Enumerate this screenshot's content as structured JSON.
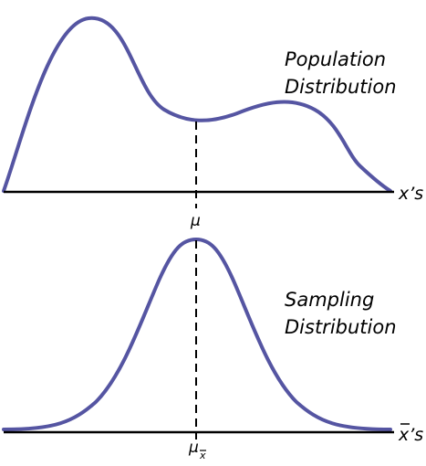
{
  "population": {
    "label_line1": "Population",
    "label_line2": "Distribution",
    "x_label": "x’s",
    "mean_label": "μ"
  },
  "sampling": {
    "label_line1": "Sampling",
    "label_line2": "Distribution",
    "x_label": "x’s",
    "mean_label": "μ",
    "mean_subscript": "x"
  },
  "colors": {
    "curve": "#5555a2",
    "axis": "#000000"
  }
}
